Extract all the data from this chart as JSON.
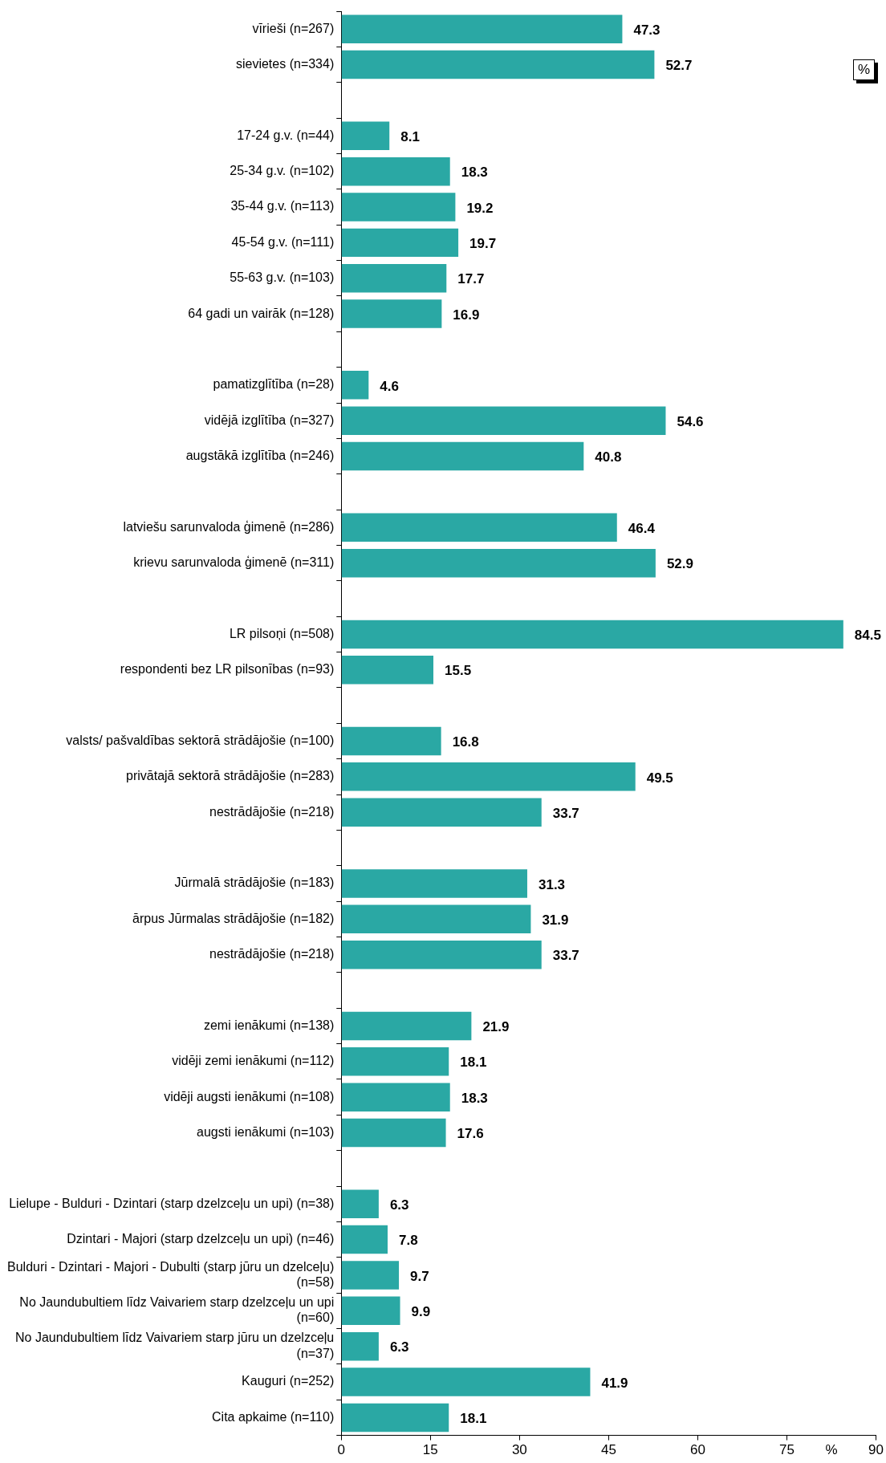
{
  "chart_data": {
    "type": "bar",
    "orientation": "horizontal",
    "xlabel": "%",
    "annotations": [
      "%"
    ],
    "categories": [
      "vīrieši (n=267)",
      "sievietes (n=334)",
      null,
      "17-24 g.v. (n=44)",
      "25-34 g.v. (n=102)",
      "35-44 g.v. (n=113)",
      "45-54 g.v. (n=111)",
      "55-63 g.v. (n=103)",
      "64 gadi un vairāk (n=128)",
      null,
      "pamatizglītība (n=28)",
      "vidējā izglītība (n=327)",
      "augstākā izglītība (n=246)",
      null,
      "latviešu sarunvaloda ģimenē (n=286)",
      "krievu sarunvaloda ģimenē (n=311)",
      null,
      "LR pilsoņi (n=508)",
      "respondenti bez LR pilsonības (n=93)",
      null,
      "valsts/ pašvaldības sektorā strādājošie (n=100)",
      "privātajā sektorā strādājošie (n=283)",
      "nestrādājošie (n=218)",
      null,
      "Jūrmalā strādājošie (n=183)",
      "ārpus Jūrmalas strādājošie (n=182)",
      "nestrādājošie (n=218)",
      null,
      "zemi ienākumi (n=138)",
      "vidēji zemi ienākumi (n=112)",
      "vidēji augsti ienākumi (n=108)",
      "augsti ienākumi (n=103)",
      null,
      "Lielupe - Bulduri - Dzintari (starp dzelzceļu un upi) (n=38)",
      "Dzintari - Majori (starp dzelzceļu un upi) (n=46)",
      "Bulduri - Dzintari - Majori - Dubulti (starp jūru un dzelceļu)\n(n=58)",
      "No Jaundubultiem līdz Vaivariem starp dzelzceļu un upi\n(n=60)",
      "No Jaundubultiem līdz Vaivariem starp jūru un dzelzceļu\n(n=37)",
      "Kauguri (n=252)",
      "Cita apkaime (n=110)"
    ],
    "values": [
      47.3,
      52.7,
      null,
      8.1,
      18.3,
      19.2,
      19.7,
      17.7,
      16.9,
      null,
      4.6,
      54.6,
      40.8,
      null,
      46.4,
      52.9,
      null,
      84.5,
      15.5,
      null,
      16.8,
      49.5,
      33.7,
      null,
      31.3,
      31.9,
      33.7,
      null,
      21.9,
      18.1,
      18.3,
      17.6,
      null,
      6.3,
      7.8,
      9.7,
      9.9,
      6.3,
      41.9,
      18.1
    ],
    "color": "#2aa8a4",
    "data_labels": true,
    "xlim": [
      0,
      90
    ],
    "xticks": [
      0,
      15,
      30,
      45,
      60,
      75,
      90
    ],
    "grid": false,
    "legend": false
  }
}
